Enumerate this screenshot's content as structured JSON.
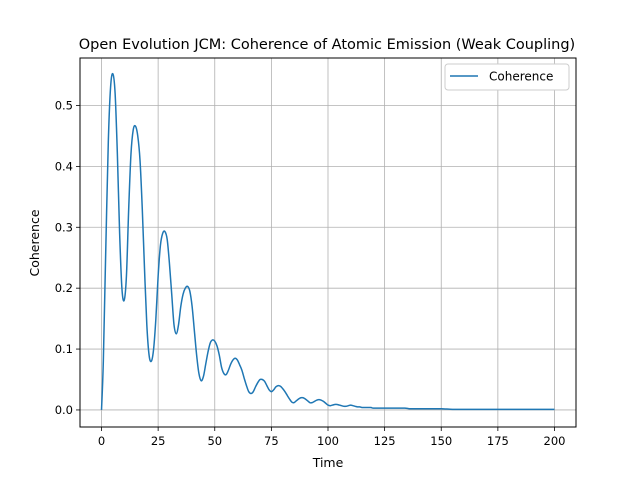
{
  "chart_data": {
    "type": "line",
    "title": "Open Evolution JCM: Coherence of Atomic Emission (Weak Coupling)",
    "xlabel": "Time",
    "ylabel": "Coherence",
    "xlim": [
      -9.5,
      209.5
    ],
    "ylim": [
      -0.028,
      0.578
    ],
    "xticks": [
      0,
      25,
      50,
      75,
      100,
      125,
      150,
      175,
      200
    ],
    "xtick_labels": [
      "0",
      "25",
      "50",
      "75",
      "100",
      "125",
      "150",
      "175",
      "200"
    ],
    "yticks": [
      0.0,
      0.1,
      0.2,
      0.3,
      0.4,
      0.5
    ],
    "ytick_labels": [
      "0.0",
      "0.1",
      "0.2",
      "0.3",
      "0.4",
      "0.5"
    ],
    "grid": true,
    "legend": {
      "position": "top-right",
      "entries": [
        "Coherence"
      ]
    },
    "series": [
      {
        "name": "Coherence",
        "color": "#1f77b4",
        "x": [
          0,
          0.8,
          1.8,
          3,
          4,
          5,
          6,
          7,
          8,
          9,
          10,
          11,
          12,
          13,
          14,
          15,
          16,
          17,
          18,
          19,
          20,
          21,
          22,
          23,
          24,
          25,
          26,
          27,
          28,
          29,
          30,
          31,
          32,
          33,
          34,
          35,
          36,
          37,
          38,
          39,
          40,
          41,
          42,
          43,
          44,
          45,
          46,
          47,
          48,
          49,
          50,
          51,
          52,
          53,
          54,
          55,
          56,
          57,
          58,
          59,
          60,
          61,
          62,
          63,
          64,
          65,
          66,
          67,
          68,
          69,
          70,
          71,
          72,
          73,
          74,
          75,
          76,
          77,
          78,
          79,
          80,
          81,
          82,
          83,
          84,
          85,
          86,
          87,
          88,
          89,
          90,
          91,
          92,
          93,
          94,
          95,
          96,
          97,
          98,
          99,
          100,
          101,
          102,
          103,
          104,
          105,
          106,
          107,
          108,
          109,
          110,
          111,
          112,
          113,
          114,
          115,
          116,
          117,
          118,
          119,
          120,
          122,
          124,
          126,
          128,
          130,
          132,
          134,
          136,
          138,
          140,
          142,
          145,
          150,
          155,
          160,
          165,
          170,
          175,
          180,
          185,
          190,
          195,
          200
        ],
        "y": [
          0.0,
          0.08,
          0.25,
          0.44,
          0.53,
          0.552,
          0.52,
          0.42,
          0.29,
          0.2,
          0.18,
          0.22,
          0.33,
          0.42,
          0.46,
          0.466,
          0.45,
          0.41,
          0.33,
          0.23,
          0.14,
          0.09,
          0.08,
          0.1,
          0.15,
          0.22,
          0.27,
          0.29,
          0.293,
          0.28,
          0.24,
          0.19,
          0.14,
          0.125,
          0.14,
          0.17,
          0.19,
          0.2,
          0.203,
          0.195,
          0.17,
          0.13,
          0.09,
          0.06,
          0.048,
          0.055,
          0.075,
          0.095,
          0.11,
          0.115,
          0.113,
          0.105,
          0.09,
          0.07,
          0.06,
          0.058,
          0.065,
          0.075,
          0.082,
          0.085,
          0.082,
          0.074,
          0.065,
          0.052,
          0.04,
          0.03,
          0.027,
          0.03,
          0.038,
          0.045,
          0.05,
          0.05,
          0.047,
          0.04,
          0.033,
          0.03,
          0.033,
          0.038,
          0.04,
          0.039,
          0.035,
          0.03,
          0.024,
          0.018,
          0.013,
          0.012,
          0.015,
          0.018,
          0.02,
          0.02,
          0.018,
          0.015,
          0.012,
          0.012,
          0.014,
          0.016,
          0.017,
          0.016,
          0.014,
          0.011,
          0.008,
          0.007,
          0.008,
          0.009,
          0.009,
          0.008,
          0.007,
          0.006,
          0.006,
          0.007,
          0.008,
          0.007,
          0.006,
          0.005,
          0.005,
          0.004,
          0.004,
          0.004,
          0.004,
          0.004,
          0.003,
          0.003,
          0.003,
          0.003,
          0.003,
          0.003,
          0.003,
          0.003,
          0.002,
          0.002,
          0.002,
          0.002,
          0.002,
          0.002,
          0.001,
          0.001,
          0.001,
          0.001,
          0.001,
          0.001,
          0.001,
          0.001,
          0.001,
          0.001
        ]
      }
    ]
  }
}
